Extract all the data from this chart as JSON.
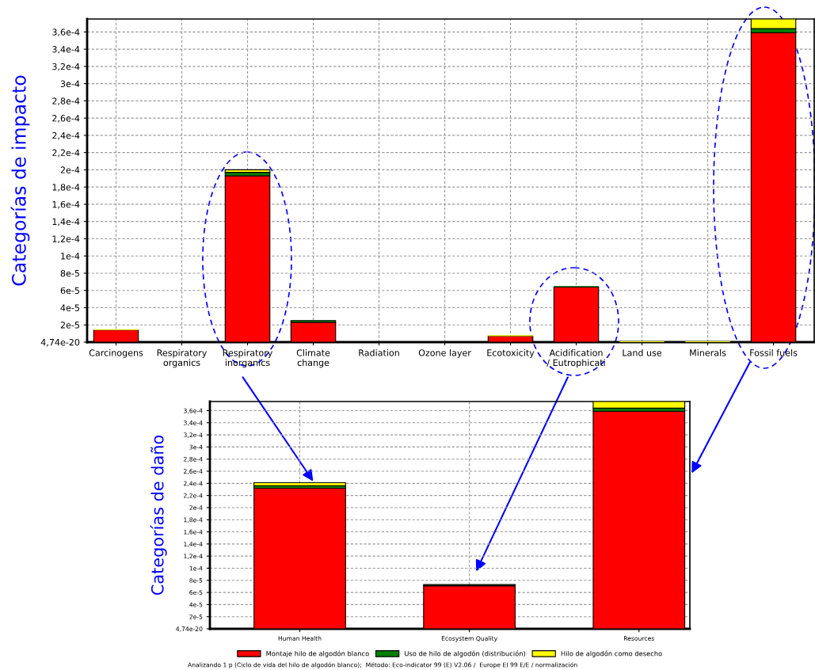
{
  "chart_data": [
    {
      "type": "bar",
      "stacked": true,
      "ylabel": "Categorías de impacto",
      "categories": [
        "Carcinogens",
        "Respiratory\norganics",
        "Respiratory\ninorganics",
        "Climate\nchange",
        "Radiation",
        "Ozone layer",
        "Ecotoxicity",
        "Acidification\n/ Eutrophicati",
        "Land use",
        "Minerals",
        "Fossil fuels"
      ],
      "series": [
        {
          "color": "#ff0000",
          "values": [
            1.4e-05,
            0,
            0.000193,
            2.3e-05,
            0,
            0,
            7e-06,
            6.4e-05,
            0,
            0,
            0.000359
          ]
        },
        {
          "color": "#008000",
          "values": [
            0,
            0,
            4e-06,
            2e-06,
            0,
            0,
            0,
            1e-06,
            0,
            0,
            5e-06
          ]
        },
        {
          "color": "#ffff00",
          "values": [
            1e-06,
            0,
            3e-06,
            0,
            0,
            0,
            1e-06,
            0,
            1e-06,
            1e-06,
            1.1e-05
          ]
        }
      ],
      "ylim": [
        0,
        0.000375
      ],
      "yticks": [
        {
          "value": 4.74e-20,
          "label": "4,74e-20"
        },
        {
          "value": 2e-05,
          "label": "2e-5"
        },
        {
          "value": 4e-05,
          "label": "4e-5"
        },
        {
          "value": 6e-05,
          "label": "6e-5"
        },
        {
          "value": 8e-05,
          "label": "8e-5"
        },
        {
          "value": 0.0001,
          "label": "1e-4"
        },
        {
          "value": 0.00012,
          "label": "1,2e-4"
        },
        {
          "value": 0.00014,
          "label": "1,4e-4"
        },
        {
          "value": 0.00016,
          "label": "1,6e-4"
        },
        {
          "value": 0.00018,
          "label": "1,8e-4"
        },
        {
          "value": 0.0002,
          "label": "2e-4"
        },
        {
          "value": 0.00022,
          "label": "2,2e-4"
        },
        {
          "value": 0.00024,
          "label": "2,4e-4"
        },
        {
          "value": 0.00026,
          "label": "2,6e-4"
        },
        {
          "value": 0.00028,
          "label": "2,8e-4"
        },
        {
          "value": 0.0003,
          "label": "3e-4"
        },
        {
          "value": 0.00032,
          "label": "3,2e-4"
        },
        {
          "value": 0.00034,
          "label": "3,4e-4"
        },
        {
          "value": 0.00036,
          "label": "3,6e-4"
        }
      ],
      "grid": true,
      "legend": false
    },
    {
      "type": "bar",
      "stacked": true,
      "ylabel": "Categorías de daño",
      "categories": [
        "Human Health",
        "Ecosystem Quality",
        "Resources"
      ],
      "series": [
        {
          "name": "Montaje hilo de algodón blanco",
          "color": "#ff0000",
          "values": [
            0.000232,
            7.1e-05,
            0.000359
          ]
        },
        {
          "name": "Uso de hilo de algodón (distribución)",
          "color": "#008000",
          "values": [
            4e-06,
            2e-06,
            5e-06
          ]
        },
        {
          "name": "Hilo de algodón como desecho",
          "color": "#ffff00",
          "values": [
            5e-06,
            0,
            1.1e-05
          ]
        }
      ],
      "ylim": [
        0,
        0.000375
      ],
      "yticks": [
        {
          "value": 4.74e-20,
          "label": "4,74e-20"
        },
        {
          "value": 2e-05,
          "label": "2e-5"
        },
        {
          "value": 4e-05,
          "label": "4e-5"
        },
        {
          "value": 6e-05,
          "label": "6e-5"
        },
        {
          "value": 8e-05,
          "label": "8e-5"
        },
        {
          "value": 0.0001,
          "label": "1e-4"
        },
        {
          "value": 0.00012,
          "label": "1,2e-4"
        },
        {
          "value": 0.00014,
          "label": "1,4e-4"
        },
        {
          "value": 0.00016,
          "label": "1,6e-4"
        },
        {
          "value": 0.00018,
          "label": "1,8e-4"
        },
        {
          "value": 0.0002,
          "label": "2e-4"
        },
        {
          "value": 0.00022,
          "label": "2,2e-4"
        },
        {
          "value": 0.00024,
          "label": "2,4e-4"
        },
        {
          "value": 0.00026,
          "label": "2,6e-4"
        },
        {
          "value": 0.00028,
          "label": "2,8e-4"
        },
        {
          "value": 0.0003,
          "label": "3e-4"
        },
        {
          "value": 0.00032,
          "label": "3,2e-4"
        },
        {
          "value": 0.00034,
          "label": "3,4e-4"
        },
        {
          "value": 0.00036,
          "label": "3,6e-4"
        }
      ],
      "grid": true,
      "legend": "bottom",
      "annotations": [
        "Analizando 1 p (Ciclo de vida del hilo de algodón blanco);  Método: Eco-indicator 99 (E) V2.06 /  Europe EI 99 E/E / normalización"
      ]
    }
  ]
}
